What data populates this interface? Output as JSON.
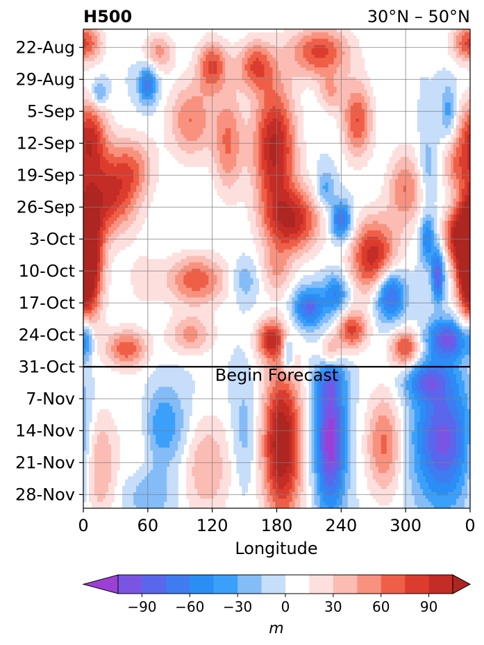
{
  "chart_data": {
    "type": "heatmap",
    "title": "H500",
    "subtitle": "30°N – 50°N",
    "xlabel": "Longitude",
    "ylabel": "",
    "x_ticks": [
      "0",
      "60",
      "120",
      "180",
      "240",
      "300",
      "0"
    ],
    "x_tick_values": [
      0,
      60,
      120,
      180,
      240,
      300,
      360
    ],
    "xlim": [
      0,
      360
    ],
    "y_ticks": [
      "22-Aug",
      "29-Aug",
      "5-Sep",
      "12-Sep",
      "19-Sep",
      "26-Sep",
      "3-Oct",
      "10-Oct",
      "17-Oct",
      "24-Oct",
      "31-Oct",
      "7-Nov",
      "14-Nov",
      "21-Nov",
      "28-Nov"
    ],
    "y_tick_days": [
      4,
      11,
      18,
      25,
      32,
      39,
      46,
      53,
      60,
      67,
      74,
      81,
      88,
      95,
      102
    ],
    "ylim_days": [
      0,
      105
    ],
    "y_axis_inverted": true,
    "forecast_line_day": 74,
    "annotation": "Begin Forecast",
    "grid": true,
    "colorbar": {
      "label": "m",
      "levels": [
        -105,
        -90,
        -75,
        -60,
        -45,
        -30,
        -15,
        0,
        15,
        30,
        45,
        60,
        75,
        90,
        105
      ],
      "colors": [
        "#9c3fd6",
        "#7a55e4",
        "#5a66ec",
        "#3f7cf2",
        "#2b8ef5",
        "#3aa0fa",
        "#84bcf8",
        "#c6defa",
        "#ffffff",
        "#fde0de",
        "#fbbcb4",
        "#f8927f",
        "#ef5f47",
        "#dc3c2e",
        "#c42c26",
        "#ad2621"
      ],
      "extend": "both",
      "tick_labels": [
        "−90",
        "−60",
        "−30",
        "0",
        "30",
        "60",
        "90"
      ],
      "tick_values": [
        -90,
        -60,
        -30,
        0,
        30,
        60,
        90
      ]
    },
    "features": [
      {
        "x": 0,
        "day": 3,
        "value": 80,
        "sx": 12,
        "sy": 3
      },
      {
        "x": 15,
        "day": 14,
        "value": -45,
        "sx": 5,
        "sy": 2
      },
      {
        "x": 5,
        "day": 24,
        "value": 95,
        "sx": 12,
        "sy": 6
      },
      {
        "x": 25,
        "day": 37,
        "value": 80,
        "sx": 18,
        "sy": 6
      },
      {
        "x": 5,
        "day": 50,
        "value": 110,
        "sx": 10,
        "sy": 10
      },
      {
        "x": 60,
        "day": 12,
        "value": -70,
        "sx": 6,
        "sy": 3
      },
      {
        "x": 45,
        "day": 30,
        "value": 50,
        "sx": 15,
        "sy": 5
      },
      {
        "x": 55,
        "day": 55,
        "value": 20,
        "sx": 12,
        "sy": 5
      },
      {
        "x": 100,
        "day": 20,
        "value": 60,
        "sx": 15,
        "sy": 6
      },
      {
        "x": 70,
        "day": 5,
        "value": 50,
        "sx": 10,
        "sy": 3
      },
      {
        "x": 120,
        "day": 8,
        "value": 75,
        "sx": 10,
        "sy": 4
      },
      {
        "x": 135,
        "day": 25,
        "value": 60,
        "sx": 10,
        "sy": 8
      },
      {
        "x": 160,
        "day": 8,
        "value": 70,
        "sx": 12,
        "sy": 4
      },
      {
        "x": 178,
        "day": 26,
        "value": 110,
        "sx": 14,
        "sy": 10
      },
      {
        "x": 195,
        "day": 42,
        "value": 95,
        "sx": 18,
        "sy": 5
      },
      {
        "x": 220,
        "day": 5,
        "value": 80,
        "sx": 20,
        "sy": 4
      },
      {
        "x": 230,
        "day": 14,
        "value": 40,
        "sx": 8,
        "sy": 3
      },
      {
        "x": 180,
        "day": 53,
        "value": 40,
        "sx": 10,
        "sy": 4
      },
      {
        "x": 255,
        "day": 20,
        "value": 75,
        "sx": 10,
        "sy": 6
      },
      {
        "x": 225,
        "day": 35,
        "value": -40,
        "sx": 6,
        "sy": 3
      },
      {
        "x": 240,
        "day": 42,
        "value": -80,
        "sx": 7,
        "sy": 3
      },
      {
        "x": 105,
        "day": 55,
        "value": 70,
        "sx": 20,
        "sy": 4
      },
      {
        "x": 150,
        "day": 55,
        "value": -30,
        "sx": 8,
        "sy": 3
      },
      {
        "x": 175,
        "day": 68,
        "value": 90,
        "sx": 10,
        "sy": 3
      },
      {
        "x": 210,
        "day": 61,
        "value": -80,
        "sx": 10,
        "sy": 3
      },
      {
        "x": 235,
        "day": 58,
        "value": -60,
        "sx": 8,
        "sy": 3
      },
      {
        "x": 250,
        "day": 66,
        "value": 80,
        "sx": 10,
        "sy": 3
      },
      {
        "x": 270,
        "day": 50,
        "value": 100,
        "sx": 15,
        "sy": 6
      },
      {
        "x": 285,
        "day": 58,
        "value": -95,
        "sx": 10,
        "sy": 4
      },
      {
        "x": 300,
        "day": 35,
        "value": 60,
        "sx": 12,
        "sy": 6
      },
      {
        "x": 320,
        "day": 46,
        "value": -60,
        "sx": 5,
        "sy": 4
      },
      {
        "x": 330,
        "day": 54,
        "value": -90,
        "sx": 4,
        "sy": 4
      },
      {
        "x": 345,
        "day": 45,
        "value": 70,
        "sx": 8,
        "sy": 4
      },
      {
        "x": 358,
        "day": 50,
        "value": 110,
        "sx": 8,
        "sy": 8
      },
      {
        "x": 340,
        "day": 68,
        "value": -90,
        "sx": 14,
        "sy": 3
      },
      {
        "x": 40,
        "day": 70,
        "value": 70,
        "sx": 14,
        "sy": 3
      },
      {
        "x": 100,
        "day": 67,
        "value": 50,
        "sx": 15,
        "sy": 3
      },
      {
        "x": 3,
        "day": 68,
        "value": -50,
        "sx": 4,
        "sy": 3
      },
      {
        "x": 190,
        "day": 71,
        "value": -60,
        "sx": 4,
        "sy": 3
      },
      {
        "x": 230,
        "day": 71,
        "value": 60,
        "sx": 8,
        "sy": 3
      },
      {
        "x": 300,
        "day": 70,
        "value": 80,
        "sx": 10,
        "sy": 3
      },
      {
        "x": 320,
        "day": 30,
        "value": -30,
        "sx": 6,
        "sy": 5
      },
      {
        "x": 340,
        "day": 18,
        "value": -40,
        "sx": 5,
        "sy": 4
      },
      {
        "x": 345,
        "day": 30,
        "value": 40,
        "sx": 8,
        "sy": 4
      },
      {
        "x": 185,
        "day": 91,
        "value": 125,
        "sx": 13,
        "sy": 12
      },
      {
        "x": 230,
        "day": 90,
        "value": -115,
        "sx": 10,
        "sy": 11
      },
      {
        "x": 335,
        "day": 90,
        "value": -95,
        "sx": 20,
        "sy": 10
      },
      {
        "x": 280,
        "day": 91,
        "value": 65,
        "sx": 12,
        "sy": 8
      },
      {
        "x": 75,
        "day": 87,
        "value": -45,
        "sx": 15,
        "sy": 6
      },
      {
        "x": 115,
        "day": 96,
        "value": 45,
        "sx": 16,
        "sy": 8
      },
      {
        "x": 15,
        "day": 95,
        "value": 55,
        "sx": 11,
        "sy": 9
      },
      {
        "x": 50,
        "day": 89,
        "value": 22,
        "sx": 10,
        "sy": 8
      },
      {
        "x": 320,
        "day": 77,
        "value": -60,
        "sx": 15,
        "sy": 3
      },
      {
        "x": 230,
        "day": 76,
        "value": -40,
        "sx": 10,
        "sy": 3
      },
      {
        "x": 60,
        "day": 102,
        "value": -30,
        "sx": 15,
        "sy": 4
      },
      {
        "x": 150,
        "day": 88,
        "value": -25,
        "sx": 8,
        "sy": 8
      }
    ]
  }
}
